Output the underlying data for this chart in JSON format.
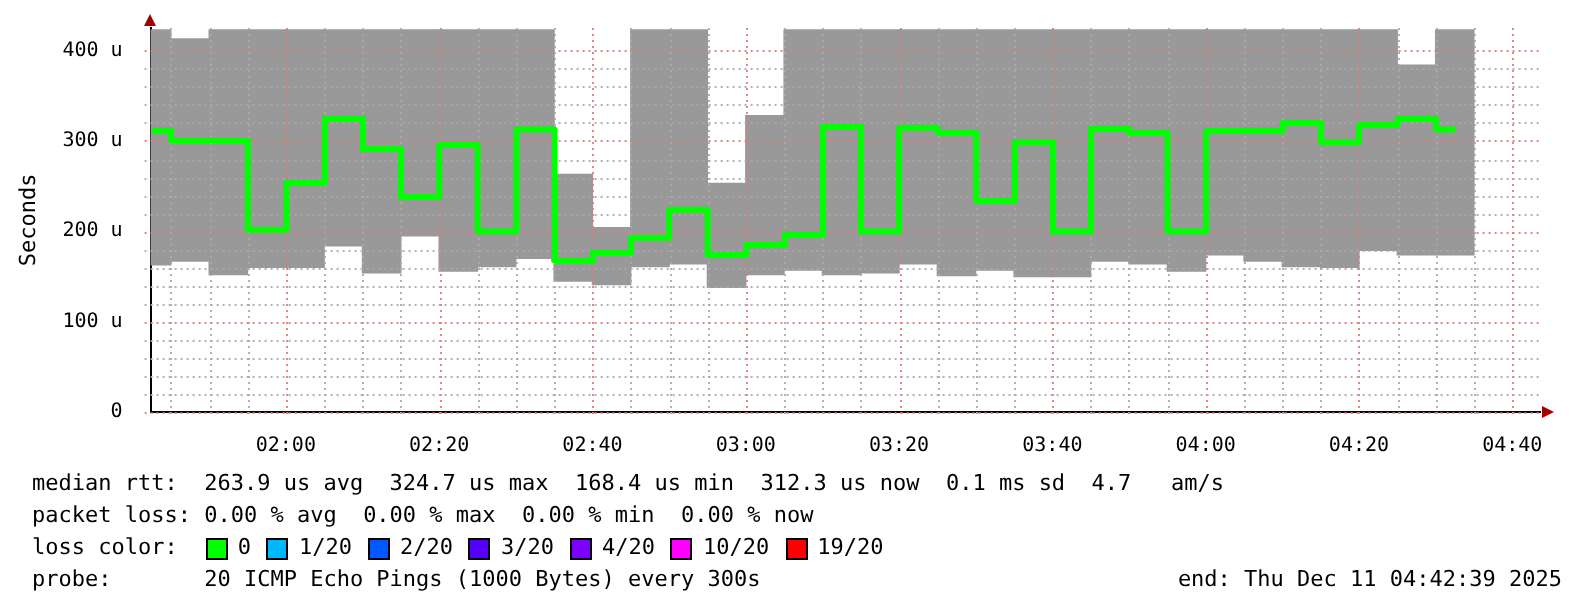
{
  "chart_data": {
    "type": "bar",
    "ylabel": "Seconds",
    "x": [
      1.7083,
      1.7917,
      1.875,
      1.9583,
      2.0417,
      2.125,
      2.2083,
      2.2917,
      2.375,
      2.4583,
      2.5417,
      2.625,
      2.7083,
      2.7917,
      2.875,
      2.9583,
      3.0417,
      3.125,
      3.2083,
      3.2917,
      3.375,
      3.4583,
      3.5417,
      3.625,
      3.7083,
      3.7917,
      3.875,
      3.9583,
      4.0417,
      4.125,
      4.2083,
      4.2917,
      4.375,
      4.4583,
      4.5417
    ],
    "series": [
      {
        "color": "#999999",
        "base": [
          163,
          167,
          152,
          160,
          160,
          184,
          154,
          195,
          156,
          161,
          170,
          145,
          141,
          161,
          164,
          138,
          152,
          157,
          152,
          154,
          164,
          151,
          157,
          150,
          150,
          167,
          164,
          156,
          174,
          167,
          161,
          160,
          179,
          174,
          174
        ],
        "values": [
          260,
          246,
          271,
          263,
          263,
          239,
          269,
          228,
          267,
          262,
          253,
          118,
          63,
          262,
          259,
          115,
          176,
          266,
          271,
          269,
          259,
          272,
          266,
          273,
          273,
          256,
          259,
          267,
          249,
          256,
          262,
          263,
          244,
          210,
          249
        ]
      },
      {
        "type": "step",
        "color": "#00ff00",
        "values": [
          312,
          301,
          301,
          202,
          254,
          325,
          291,
          238,
          296,
          200,
          313,
          168,
          177,
          193,
          224,
          174,
          185,
          197,
          316,
          200,
          315,
          310,
          234,
          299,
          200,
          314,
          310,
          200,
          311,
          312,
          320,
          299,
          318,
          325,
          313
        ]
      }
    ],
    "xlim": [
      1.706,
      4.727
    ],
    "xticks": [
      {
        "value": 1.75,
        "label": null
      },
      {
        "value": 1.8333,
        "label": null
      },
      {
        "value": 1.9167,
        "label": null
      },
      {
        "value": 2,
        "label": "02:00"
      },
      {
        "value": 2.0833,
        "label": null
      },
      {
        "value": 2.1667,
        "label": null
      },
      {
        "value": 2.25,
        "label": null
      },
      {
        "value": 2.3333,
        "label": "02:20"
      },
      {
        "value": 2.4167,
        "label": null
      },
      {
        "value": 2.5,
        "label": null
      },
      {
        "value": 2.5833,
        "label": null
      },
      {
        "value": 2.6667,
        "label": "02:40"
      },
      {
        "value": 2.75,
        "label": null
      },
      {
        "value": 2.8333,
        "label": null
      },
      {
        "value": 2.9167,
        "label": null
      },
      {
        "value": 3,
        "label": "03:00"
      },
      {
        "value": 3.0833,
        "label": null
      },
      {
        "value": 3.1667,
        "label": null
      },
      {
        "value": 3.25,
        "label": null
      },
      {
        "value": 3.3333,
        "label": "03:20"
      },
      {
        "value": 3.4167,
        "label": null
      },
      {
        "value": 3.5,
        "label": null
      },
      {
        "value": 3.5833,
        "label": null
      },
      {
        "value": 3.6667,
        "label": "03:40"
      },
      {
        "value": 3.75,
        "label": null
      },
      {
        "value": 3.8333,
        "label": null
      },
      {
        "value": 3.9167,
        "label": null
      },
      {
        "value": 4,
        "label": "04:00"
      },
      {
        "value": 4.0833,
        "label": null
      },
      {
        "value": 4.1667,
        "label": null
      },
      {
        "value": 4.25,
        "label": null
      },
      {
        "value": 4.3333,
        "label": "04:20"
      },
      {
        "value": 4.4167,
        "label": null
      },
      {
        "value": 4.5,
        "label": null
      },
      {
        "value": 4.5833,
        "label": null
      },
      {
        "value": 4.6667,
        "label": "04:40"
      }
    ],
    "ylim": [
      0,
      425
    ],
    "yticks": [
      {
        "value": 0,
        "label": "0"
      },
      {
        "value": 20,
        "label": null
      },
      {
        "value": 40,
        "label": null
      },
      {
        "value": 60,
        "label": null
      },
      {
        "value": 80,
        "label": null
      },
      {
        "value": 100,
        "label": "100 u"
      },
      {
        "value": 120,
        "label": null
      },
      {
        "value": 140,
        "label": null
      },
      {
        "value": 160,
        "label": null
      },
      {
        "value": 180,
        "label": null
      },
      {
        "value": 200,
        "label": "200 u"
      },
      {
        "value": 220,
        "label": null
      },
      {
        "value": 240,
        "label": null
      },
      {
        "value": 260,
        "label": null
      },
      {
        "value": 280,
        "label": null
      },
      {
        "value": 300,
        "label": "300 u"
      },
      {
        "value": 320,
        "label": null
      },
      {
        "value": 340,
        "label": null
      },
      {
        "value": 360,
        "label": null
      },
      {
        "value": 380,
        "label": null
      },
      {
        "value": 400,
        "label": "400 u"
      }
    ],
    "grid": true,
    "annotations": [
      "median rtt:  263.9 us avg  324.7 us max  168.4 us min  312.3 us now  0.1 ms sd  4.7   am/s",
      "packet loss: 0.00 % avg  0.00 % max  0.00 % min  0.00 % now",
      "loss color:",
      "0",
      "1/20",
      "2/20",
      "3/20",
      "4/20",
      "10/20",
      "19/20",
      "probe:       20 ICMP Echo Pings (1000 Bytes) every 300s",
      "end: Thu Dec 11 04:42:39 2025"
    ]
  }
}
